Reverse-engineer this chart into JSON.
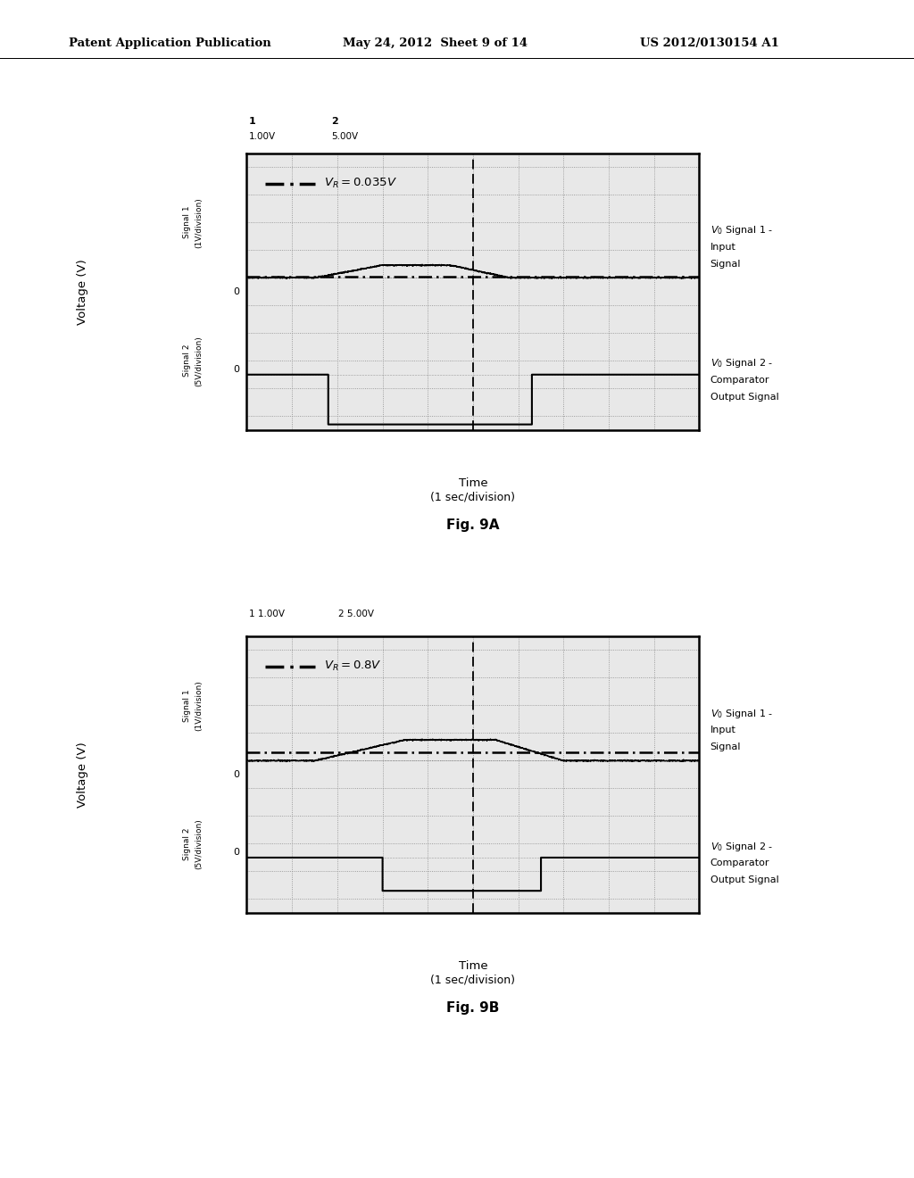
{
  "header_left": "Patent Application Publication",
  "header_mid": "May 24, 2012  Sheet 9 of 14",
  "header_right": "US 2012/0130154 A1",
  "fig9A_label": "Fig. 9A",
  "fig9B_label": "Fig. 9B",
  "bg_color": "#e8e8e8",
  "grid_color": "#888888",
  "signal_color": "#000000"
}
